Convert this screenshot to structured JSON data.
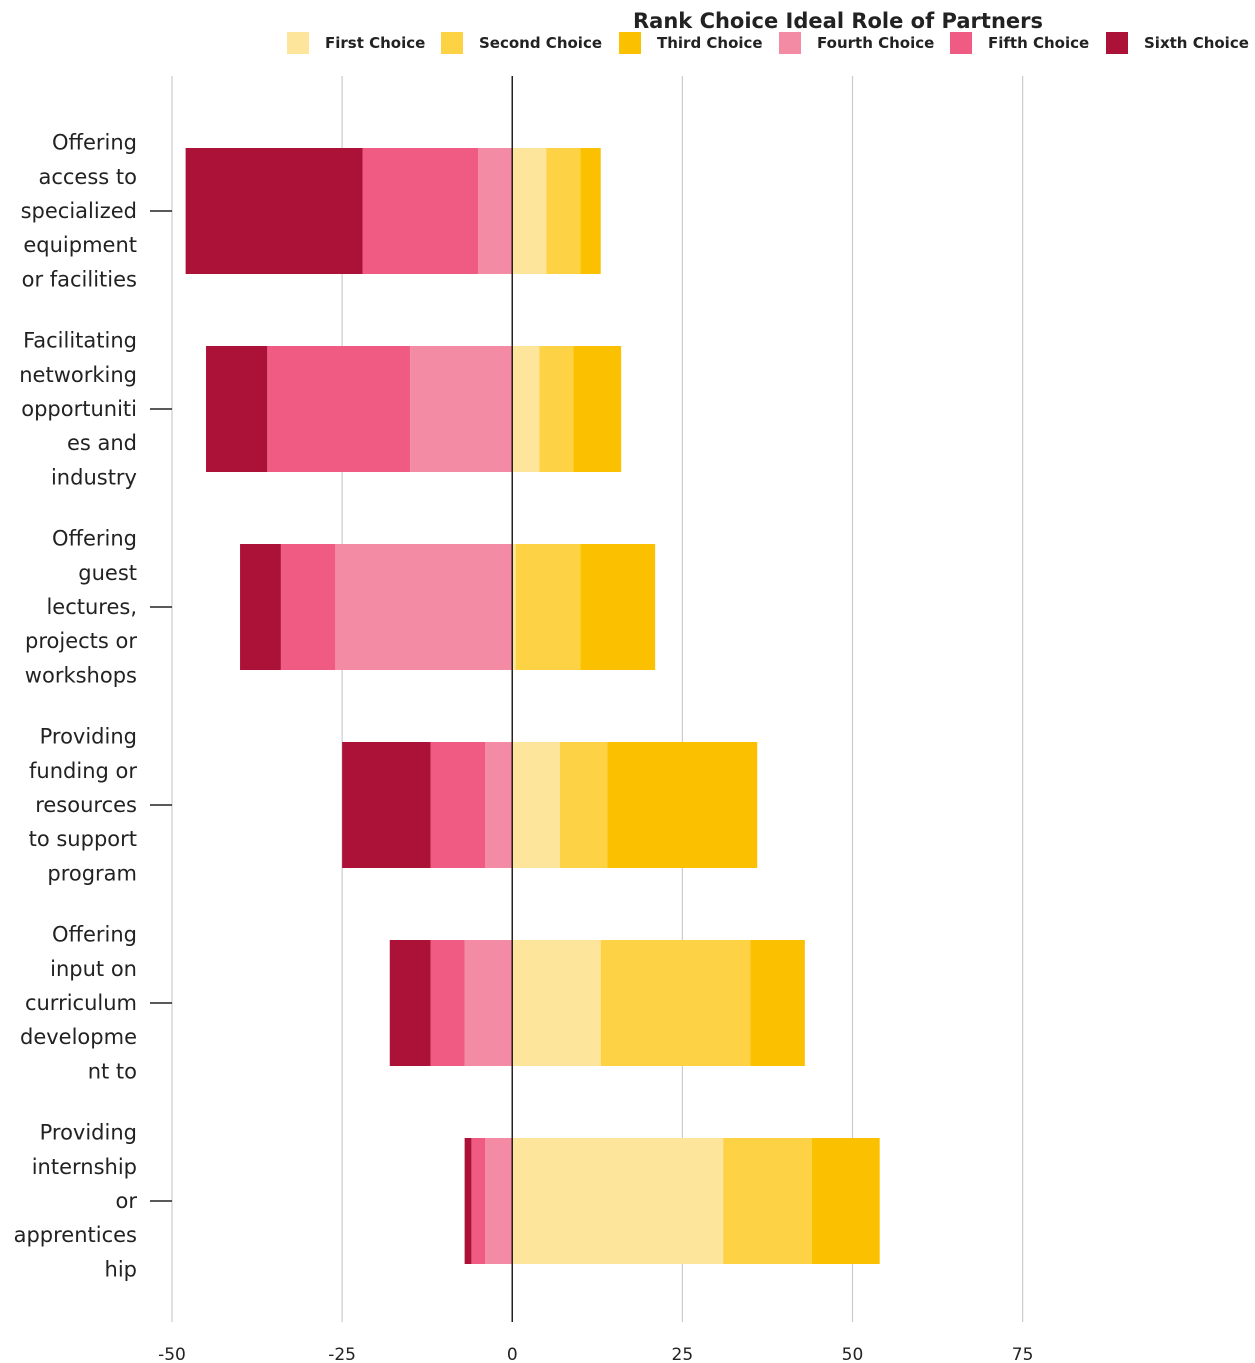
{
  "chart_data": {
    "type": "bar",
    "orientation": "horizontal",
    "stacked": "diverging",
    "title": "Rank Choice Ideal Role of Partners",
    "legend_position": "top",
    "grid": true,
    "xlim": [
      -50,
      75
    ],
    "x_ticks": [
      "-50",
      "-25",
      "0",
      "25",
      "50",
      "75"
    ],
    "categories": [
      [
        "Offering",
        "access to",
        "specialized",
        "equipment",
        "or facilities"
      ],
      [
        "Facilitating",
        "networking",
        "opportuniti",
        "es and",
        "industry"
      ],
      [
        "Offering",
        "guest",
        "lectures,",
        "projects or",
        "workshops"
      ],
      [
        "Providing",
        "funding or",
        "resources",
        "to support",
        "program"
      ],
      [
        "Offering",
        "input on",
        "curriculum",
        "developme",
        "nt to"
      ],
      [
        "Providing",
        "internship",
        "or",
        "apprentices",
        "hip"
      ]
    ],
    "series": [
      {
        "name": "First Choice",
        "side": "positive",
        "color": "#fde59b",
        "values": [
          5,
          4,
          0.5,
          7,
          13,
          31
        ]
      },
      {
        "name": "Second Choice",
        "side": "positive",
        "color": "#fdd244",
        "values": [
          5,
          5,
          9.5,
          7,
          22,
          13
        ]
      },
      {
        "name": "Third Choice",
        "side": "positive",
        "color": "#fbc101",
        "values": [
          3,
          7,
          11,
          22,
          8,
          10
        ]
      },
      {
        "name": "Fourth Choice",
        "side": "negative",
        "color": "#f38ba4",
        "values": [
          5,
          15,
          26,
          4,
          7,
          4
        ]
      },
      {
        "name": "Fifth Choice",
        "side": "negative",
        "color": "#ef5b82",
        "values": [
          17,
          21,
          8,
          8,
          5,
          2
        ]
      },
      {
        "name": "Sixth Choice",
        "side": "negative",
        "color": "#ac1138",
        "values": [
          26,
          9,
          6,
          13,
          6,
          1
        ]
      }
    ]
  }
}
